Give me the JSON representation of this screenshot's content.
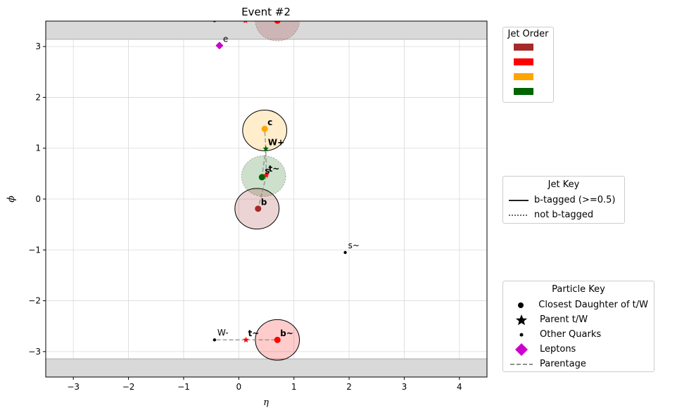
{
  "chart_data": {
    "type": "scatter",
    "title": "Event #2",
    "xlabel": "η",
    "ylabel": "ϕ",
    "xlim": [
      -3.5,
      4.5
    ],
    "ylim": [
      -3.5,
      3.5
    ],
    "xticks": [
      -3,
      -2,
      -1,
      0,
      1,
      2,
      3,
      4
    ],
    "yticks": [
      -3,
      -2,
      -1,
      0,
      1,
      2,
      3
    ],
    "xtick_labels": [
      "−3",
      "−2",
      "−1",
      "0",
      "1",
      "2",
      "3",
      "4"
    ],
    "ytick_labels": [
      "−3",
      "−2",
      "−1",
      "0",
      "1",
      "2",
      "3"
    ],
    "grid": true,
    "phi_wrap_limit": 3.14159,
    "shaded_bands": [
      {
        "y0": 3.14159,
        "y1": 3.5,
        "color": "#d9d9d9"
      },
      {
        "y0": -3.5,
        "y1": -3.14159,
        "color": "#d9d9d9"
      }
    ],
    "jet_radius": 0.4,
    "jets": [
      {
        "eta": 0.47,
        "phi": 1.35,
        "color": "#ffa500",
        "b_tagged": true
      },
      {
        "eta": 0.45,
        "phi": 0.45,
        "color": "#006400",
        "b_tagged": false
      },
      {
        "eta": 0.33,
        "phi": -0.19,
        "color": "#a52a2a",
        "b_tagged": true
      },
      {
        "eta": 0.7,
        "phi": -2.77,
        "color": "#ff0000",
        "b_tagged": true
      },
      {
        "eta": 0.7,
        "phi": 3.51,
        "color": "#a52a2a",
        "b_tagged": false
      }
    ],
    "daughters": [
      {
        "eta": 0.47,
        "phi": 1.38,
        "color": "#ffa500",
        "label": "c"
      },
      {
        "eta": 0.42,
        "phi": 0.43,
        "color": "#006400",
        "label": "s"
      },
      {
        "eta": 0.35,
        "phi": -0.19,
        "color": "#a52a2a",
        "label": "b"
      },
      {
        "eta": 0.7,
        "phi": -2.77,
        "color": "#ff0000",
        "label": "b~"
      },
      {
        "eta": 0.7,
        "phi": 3.51,
        "color": "#ff0000",
        "label": ""
      }
    ],
    "parents": [
      {
        "eta": 0.49,
        "phi": 0.99,
        "color": "#006400",
        "label": "W+"
      },
      {
        "eta": 0.5,
        "phi": 0.47,
        "color": "#ff0000",
        "label": "t~"
      },
      {
        "eta": 0.13,
        "phi": -2.77,
        "color": "#ff0000",
        "label": "t~"
      },
      {
        "eta": 0.12,
        "phi": 3.51,
        "color": "#ff0000",
        "label": ""
      }
    ],
    "other_quarks": [
      {
        "eta": -0.44,
        "phi": -2.77,
        "label": "W-"
      },
      {
        "eta": 1.93,
        "phi": -1.05,
        "label": "s~"
      },
      {
        "eta": -0.44,
        "phi": 3.51,
        "label": ""
      }
    ],
    "leptons": [
      {
        "eta": -0.35,
        "phi": 3.02,
        "label": "e",
        "color": "#cc00cc"
      }
    ],
    "parentage": [
      {
        "from": [
          0.49,
          0.99
        ],
        "to": [
          0.47,
          1.38
        ]
      },
      {
        "from": [
          0.49,
          0.99
        ],
        "to": [
          0.42,
          0.43
        ]
      },
      {
        "from": [
          0.5,
          0.47
        ],
        "to": [
          0.49,
          0.99
        ]
      },
      {
        "from": [
          0.5,
          0.47
        ],
        "to": [
          0.35,
          -0.19
        ]
      },
      {
        "from": [
          0.13,
          -2.77
        ],
        "to": [
          -0.44,
          -2.77
        ]
      },
      {
        "from": [
          0.13,
          -2.77
        ],
        "to": [
          0.7,
          -2.77
        ]
      }
    ]
  },
  "legend_jet_order": {
    "title": "Jet Order",
    "colors": [
      "#a52a2a",
      "#ff0000",
      "#ffa500",
      "#006400"
    ]
  },
  "legend_jet_key": {
    "title": "Jet Key",
    "items": [
      {
        "label": "b-tagged (>=0.5)",
        "style": "solid"
      },
      {
        "label": "not b-tagged",
        "style": "dotted"
      }
    ]
  },
  "legend_particle_key": {
    "title": "Particle Key",
    "items": [
      {
        "label": "Closest Daughter of t/W",
        "marker": "circle"
      },
      {
        "label": "Parent t/W",
        "marker": "star"
      },
      {
        "label": "Other Quarks",
        "marker": "dot"
      },
      {
        "label": "Leptons",
        "marker": "diamond"
      },
      {
        "label": "Parentage",
        "marker": "dashed"
      }
    ]
  }
}
